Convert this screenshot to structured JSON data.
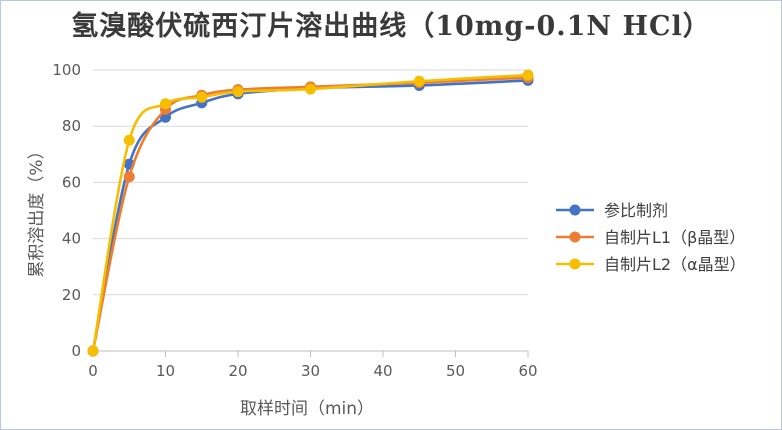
{
  "chart_data": {
    "type": "line",
    "title": "氢溴酸伏硫西汀片溶出曲线（10mg-0.1N HCl）",
    "xlabel": "取样时间（min）",
    "ylabel": "累积溶出度（%）",
    "x": [
      0,
      5,
      10,
      15,
      20,
      30,
      45,
      60
    ],
    "xticks": [
      "0",
      "10",
      "20",
      "30",
      "40",
      "50",
      "60"
    ],
    "yticks": [
      "0",
      "20",
      "40",
      "60",
      "80",
      "100"
    ],
    "xlim": [
      0,
      60
    ],
    "ylim": [
      0,
      100
    ],
    "grid": "horizontal",
    "legend_position": "right",
    "series": [
      {
        "name": "参比制剂",
        "color": "#4472C4",
        "values": [
          0,
          66.5,
          83.2,
          88.3,
          91.5,
          93.5,
          94.5,
          96.3
        ]
      },
      {
        "name": "自制片L1（β晶型）",
        "color": "#ED7D31",
        "values": [
          0,
          62.0,
          86.0,
          91.0,
          93.0,
          94.0,
          95.5,
          97.3
        ]
      },
      {
        "name": "自制片L2（α晶型）",
        "color": "#F5BE00",
        "values": [
          0,
          75.0,
          88.0,
          90.3,
          92.3,
          93.2,
          96.0,
          98.2
        ]
      }
    ]
  }
}
